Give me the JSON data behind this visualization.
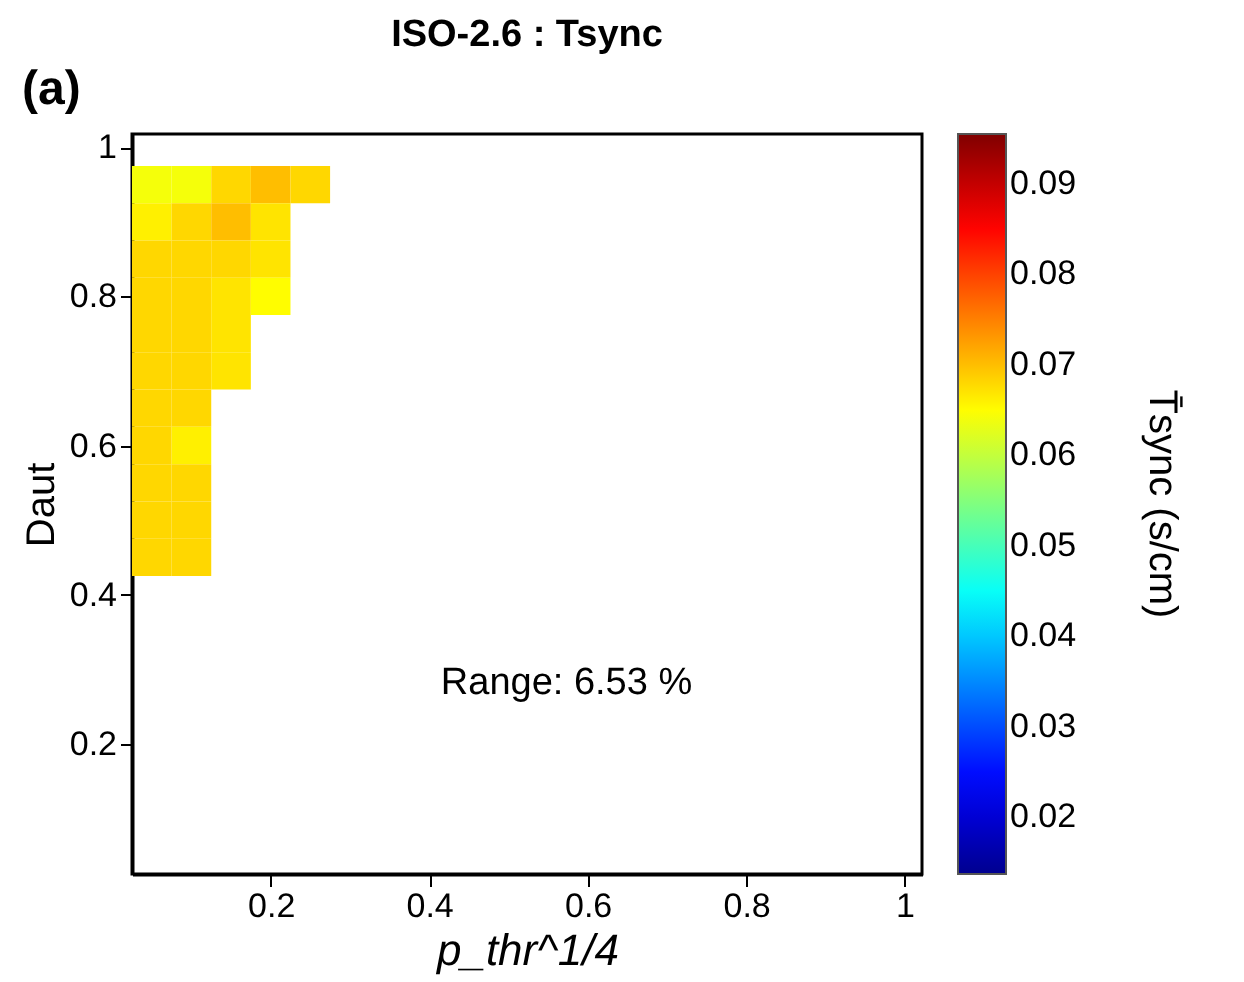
{
  "chart_data": {
    "type": "heatmap",
    "title": "ISO-2.6 : Tsync",
    "xlabel": "p_thr^1/4",
    "ylabel": "Daut",
    "clabel": "T̄sync (s/cm)",
    "annotations": [
      "(a)",
      "Range: 6.53 %"
    ],
    "x": [
      0.05,
      0.1,
      0.15,
      0.2,
      0.25
    ],
    "y": [
      0.95,
      0.9,
      0.85,
      0.8,
      0.75,
      0.7,
      0.65,
      0.6,
      0.55,
      0.5,
      0.45
    ],
    "cells": [
      [
        0.064,
        0.064,
        0.068,
        0.07,
        0.068
      ],
      [
        0.066,
        0.068,
        0.07,
        0.067,
        null
      ],
      [
        0.068,
        0.068,
        0.068,
        0.067,
        null
      ],
      [
        0.068,
        0.068,
        0.067,
        0.065,
        null
      ],
      [
        0.068,
        0.068,
        0.067,
        null,
        null
      ],
      [
        0.068,
        0.068,
        0.067,
        null,
        null
      ],
      [
        0.068,
        0.068,
        null,
        null,
        null
      ],
      [
        0.068,
        0.066,
        null,
        null,
        null
      ],
      [
        0.068,
        0.068,
        null,
        null,
        null
      ],
      [
        0.068,
        0.068,
        null,
        null,
        null
      ],
      [
        0.068,
        0.068,
        null,
        null,
        null
      ]
    ],
    "xlim": [
      0.025,
      1.022
    ],
    "ylim": [
      0.025,
      1.018
    ],
    "xticks": [
      0.2,
      0.4,
      0.6,
      0.8,
      1
    ],
    "yticks": [
      0.2,
      0.4,
      0.6,
      0.8,
      1
    ],
    "clim": [
      0.0137,
      0.0955
    ],
    "cticks": [
      0.02,
      0.03,
      0.04,
      0.05,
      0.06,
      0.07,
      0.08,
      0.09
    ]
  }
}
